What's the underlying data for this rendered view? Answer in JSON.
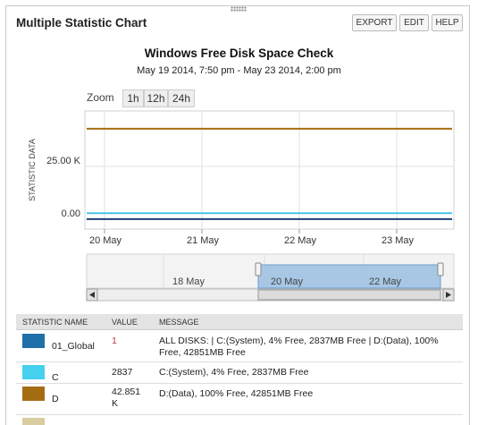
{
  "header": {
    "title": "Multiple Statistic Chart",
    "buttons": [
      "EXPORT",
      "EDIT",
      "HELP"
    ]
  },
  "chart": {
    "title": "Windows Free Disk Space Check",
    "subtitle": "May 19 2014, 7:50 pm - May 23 2014, 2:00 pm",
    "zoom_label": "Zoom",
    "zoom_buttons": [
      "1h",
      "12h",
      "24h"
    ],
    "y_label": "STATISTIC DATA",
    "ylim": [
      -4700,
      51300
    ],
    "yticks": [
      {
        "value": 0,
        "label": "0.00"
      },
      {
        "value": 25000,
        "label": "25.00 K"
      }
    ],
    "xticks": [
      "20 May",
      "21 May",
      "22 May",
      "23 May"
    ],
    "navigator_ticks": [
      "18 May",
      "20 May",
      "22 May"
    ]
  },
  "table": {
    "columns": [
      "STATISTIC NAME",
      "VALUE",
      "MESSAGE"
    ],
    "rows": [
      {
        "name": "01_Global",
        "color": "#1f6fa8",
        "line_color": "#1d3f73",
        "value": 1,
        "value_color": "#c0304a",
        "message": "ALL DISKS: | C:(System), 4% Free, 2837MB Free | D:(Data), 100% Free, 42851MB Free"
      },
      {
        "name": "C",
        "color": "#45d0ee",
        "line_color": "#45c6e8",
        "value": 2837,
        "value_color": "#222222",
        "message": "C:(System), 4% Free, 2837MB Free"
      },
      {
        "name": "D",
        "color": "#a56d12",
        "line_color": "#a56d12",
        "value": 42851,
        "value_label": "42.851 K",
        "value_color": "#222222",
        "message": "D:(Data), 100% Free, 42851MB Free"
      },
      {
        "color": "#d8cca0"
      }
    ]
  }
}
